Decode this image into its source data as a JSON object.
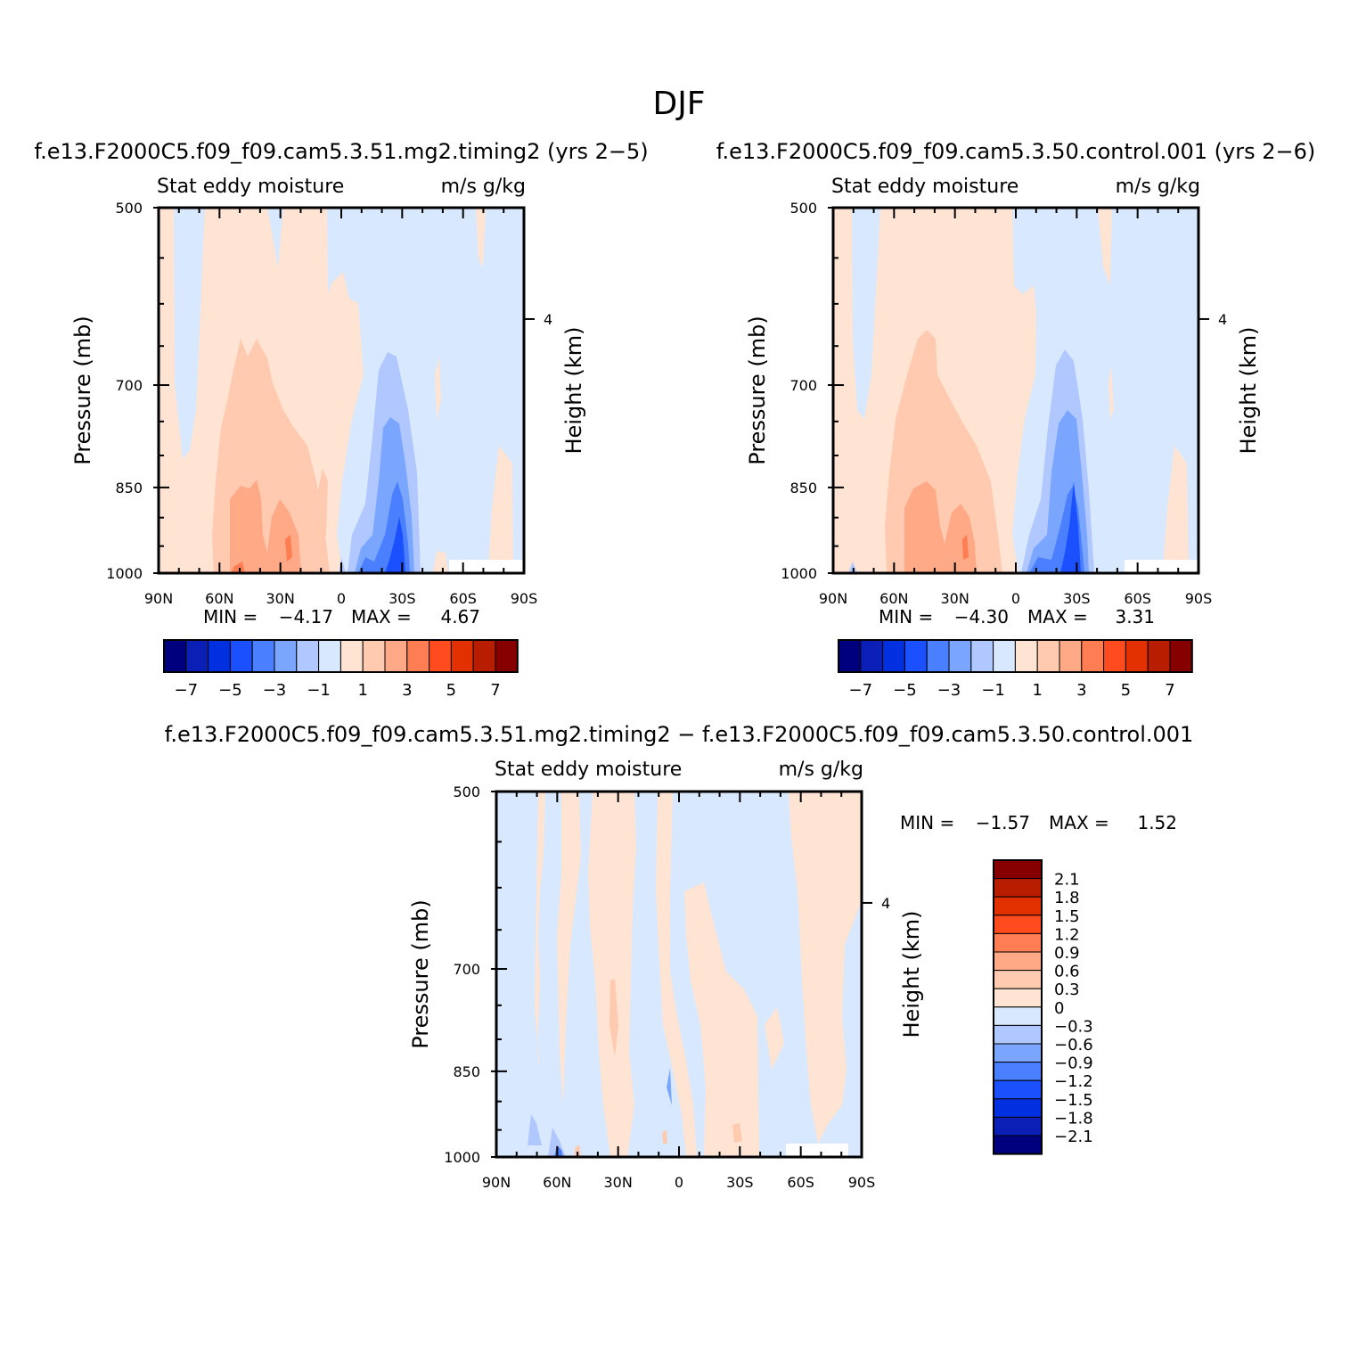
{
  "figure": {
    "season_title": "DJF"
  },
  "panels": [
    {
      "id": "panel-timing2",
      "case_title": "f.e13.F2000C5.f09_f09.cam5.3.51.mg2.timing2 (yrs 2−5)",
      "var_name": "Stat eddy moisture",
      "units": "m/s g/kg",
      "y_label": "Pressure (mb)",
      "y_right_label": "Height (km)",
      "min_label": "MIN =",
      "min_value": "−4.17",
      "max_label": "MAX =",
      "max_value": "4.67"
    },
    {
      "id": "panel-control",
      "case_title": "f.e13.F2000C5.f09_f09.cam5.3.50.control.001 (yrs 2−6)",
      "var_name": "Stat eddy moisture",
      "units": "m/s g/kg",
      "y_label": "Pressure (mb)",
      "y_right_label": "Height (km)",
      "min_label": "MIN =",
      "min_value": "−4.30",
      "max_label": "MAX =",
      "max_value": "3.31"
    },
    {
      "id": "panel-diff",
      "case_title": "f.e13.F2000C5.f09_f09.cam5.3.51.mg2.timing2 − f.e13.F2000C5.f09_f09.cam5.3.50.control.001",
      "var_name": "Stat eddy moisture",
      "units": "m/s g/kg",
      "y_label": "Pressure (mb)",
      "y_right_label": "Height (km)",
      "min_label": "MIN =",
      "min_value": "−1.57",
      "max_label": "MAX =",
      "max_value": "1.52"
    }
  ],
  "colorbars": {
    "absolute": {
      "colors": [
        "#00007f",
        "#0b1fb6",
        "#0030e0",
        "#1a50ff",
        "#4a80ff",
        "#7aa6ff",
        "#b0c8ff",
        "#d8e8ff",
        "#ffe4d4",
        "#ffcab0",
        "#ffa987",
        "#ff7d52",
        "#ff4b1e",
        "#e33000",
        "#b81d00",
        "#860000"
      ],
      "labels": [
        "−7",
        "−5",
        "−3",
        "−1",
        "1",
        "3",
        "5",
        "7"
      ]
    },
    "difference": {
      "colors": [
        "#00007f",
        "#0b1fb6",
        "#0030e0",
        "#1a50ff",
        "#4a80ff",
        "#7aa6ff",
        "#b0c8ff",
        "#d8e8ff",
        "#ffe4d4",
        "#ffcab0",
        "#ffa987",
        "#ff7d52",
        "#ff4b1e",
        "#e33000",
        "#b81d00",
        "#860000"
      ],
      "labels": [
        "2.1",
        "1.8",
        "1.5",
        "1.2",
        "0.9",
        "0.6",
        "0.3",
        "0",
        "−0.3",
        "−0.6",
        "−0.9",
        "−1.2",
        "−1.5",
        "−1.8",
        "−2.1"
      ]
    }
  },
  "chart_data": [
    {
      "type": "heatmap",
      "title": "f.e13.F2000C5.f09_f09.cam5.3.51.mg2.timing2 (yrs 2−5)",
      "x_ticks": [
        "90N",
        "60N",
        "30N",
        "0",
        "30S",
        "60S",
        "90S"
      ],
      "x_range": [
        90,
        -90
      ],
      "y_ticks": [
        500,
        700,
        850,
        1000
      ],
      "y_range": [
        1000,
        500
      ],
      "y_scale": "log",
      "y_right_ticks": [
        4
      ],
      "value_range": [
        -4.17,
        4.67
      ],
      "x": [
        90,
        60,
        30,
        0,
        -30,
        -60,
        -90
      ],
      "y": [
        500,
        700,
        850,
        1000
      ],
      "z": [
        [
          0.1,
          0.5,
          0.5,
          -0.3,
          -0.3,
          -0.3,
          -0.3
        ],
        [
          0.5,
          1.5,
          1.5,
          0.5,
          -0.5,
          -0.3,
          -0.3
        ],
        [
          0.5,
          2.5,
          1.5,
          0.5,
          -1.5,
          -0.3,
          0.3
        ],
        [
          0.5,
          3.0,
          2.5,
          0.5,
          -3.5,
          -0.3,
          0.3
        ]
      ]
    },
    {
      "type": "heatmap",
      "title": "f.e13.F2000C5.f09_f09.cam5.3.50.control.001 (yrs 2−6)",
      "x_ticks": [
        "90N",
        "60N",
        "30N",
        "0",
        "30S",
        "60S",
        "90S"
      ],
      "x_range": [
        90,
        -90
      ],
      "y_ticks": [
        500,
        700,
        850,
        1000
      ],
      "y_range": [
        1000,
        500
      ],
      "y_scale": "log",
      "y_right_ticks": [
        4
      ],
      "value_range": [
        -4.3,
        3.31
      ],
      "x": [
        90,
        60,
        30,
        0,
        -30,
        -60,
        -90
      ],
      "y": [
        500,
        700,
        850,
        1000
      ],
      "z": [
        [
          -0.3,
          0.5,
          0.5,
          -0.3,
          -0.3,
          -0.3,
          -0.3
        ],
        [
          0.5,
          1.5,
          1.5,
          0.5,
          -0.5,
          -0.3,
          -0.3
        ],
        [
          0.5,
          2.5,
          1.5,
          0.5,
          -1.5,
          -0.3,
          0.3
        ],
        [
          0.5,
          3.0,
          2.0,
          0.3,
          -3.5,
          -0.3,
          0.3
        ]
      ]
    },
    {
      "type": "heatmap",
      "title": "f.e13.F2000C5.f09_f09.cam5.3.51.mg2.timing2 − f.e13.F2000C5.f09_f09.cam5.3.50.control.001",
      "x_ticks": [
        "90N",
        "60N",
        "30N",
        "0",
        "30S",
        "60S",
        "90S"
      ],
      "x_range": [
        90,
        -90
      ],
      "y_ticks": [
        500,
        700,
        850,
        1000
      ],
      "y_range": [
        1000,
        500
      ],
      "y_scale": "log",
      "y_right_ticks": [
        4
      ],
      "value_range": [
        -1.57,
        1.52
      ],
      "x": [
        90,
        60,
        30,
        0,
        -30,
        -60,
        -90
      ],
      "y": [
        500,
        700,
        850,
        1000
      ],
      "z": [
        [
          -0.1,
          0.1,
          0.1,
          -0.1,
          -0.1,
          0.1,
          0.1
        ],
        [
          -0.1,
          0.1,
          0.2,
          -0.1,
          0.1,
          -0.1,
          0.1
        ],
        [
          -0.1,
          0.1,
          0.3,
          -0.1,
          0.1,
          -0.1,
          0.1
        ],
        [
          -0.3,
          -0.1,
          0.1,
          0.1,
          0.1,
          -0.1,
          0.1
        ]
      ]
    }
  ]
}
